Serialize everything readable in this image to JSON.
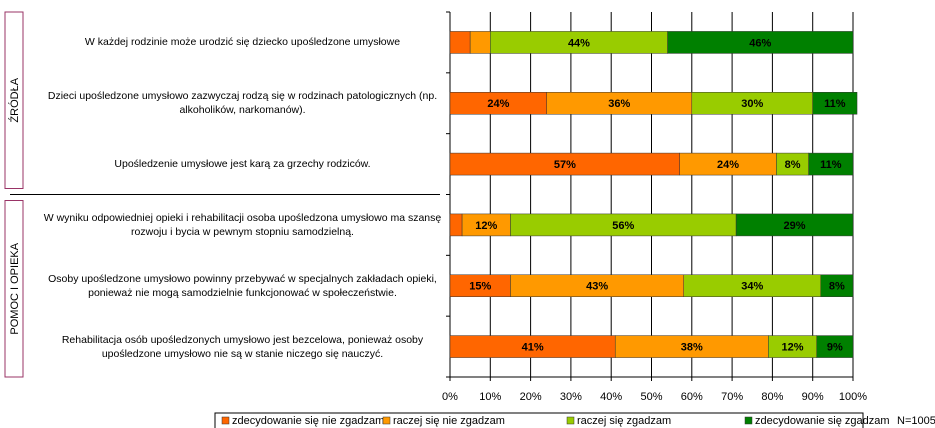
{
  "chart_data": {
    "type": "bar",
    "orientation": "horizontal",
    "stacked": true,
    "groups": [
      "ŹRÓDŁA",
      "POMOC I OPIEKA"
    ],
    "categories": [
      "W każdej rodzinie może urodzić się dziecko upośledzone umysłowe",
      "Dzieci upośledzone umysłowo zazwyczaj rodzą się w rodzinach patologicznych (np. alkoholików, narkomanów).",
      "Upośledzenie umysłowe jest karą za grzechy rodziców.",
      "W wyniku odpowiedniej opieki i rehabilitacji osoba upośledzona umysłowo ma szansę rozwoju i bycia w pewnym stopniu samodzielną.",
      "Osoby upośledzone umysłowo powinny przebywać w specjalnych zakładach opieki, ponieważ nie mogą samodzielnie funkcjonować w społeczeństwie.",
      "Rehabilitacja osób upośledzonych umysłowo jest bezcelowa, ponieważ osoby upośledzone umysłowo nie są w stanie niczego się nauczyć."
    ],
    "series": [
      {
        "name": "zdecydowanie się nie zgadzam",
        "color": "#ff6600",
        "values": [
          5,
          24,
          57,
          3,
          15,
          41
        ],
        "value_labels": [
          null,
          "24%",
          "57%",
          null,
          "15%",
          "41%"
        ]
      },
      {
        "name": "raczej się nie zgadzam",
        "color": "#ff9900",
        "values": [
          5,
          36,
          24,
          12,
          43,
          38
        ],
        "value_labels": [
          null,
          "36%",
          "24%",
          "12%",
          "43%",
          "38%"
        ]
      },
      {
        "name": "raczej się zgadzam",
        "color": "#99cc00",
        "values": [
          44,
          30,
          8,
          56,
          34,
          12
        ],
        "value_labels": [
          "44%",
          "30%",
          "8%",
          "56%",
          "34%",
          "12%"
        ]
      },
      {
        "name": "zdecydowanie się zgadzam",
        "color": "#008000",
        "values": [
          46,
          11,
          11,
          29,
          8,
          9
        ],
        "value_labels": [
          "46%",
          "11%",
          "11%",
          "29%",
          "8%",
          "9%"
        ]
      }
    ],
    "xlim": [
      0,
      100
    ],
    "xticks": [
      {
        "value": 0,
        "label": "0%"
      },
      {
        "value": 10,
        "label": "10%"
      },
      {
        "value": 20,
        "label": "20%"
      },
      {
        "value": 30,
        "label": "30%"
      },
      {
        "value": 40,
        "label": "40%"
      },
      {
        "value": 50,
        "label": "50%"
      },
      {
        "value": 60,
        "label": "60%"
      },
      {
        "value": 70,
        "label": "70%"
      },
      {
        "value": 80,
        "label": "80%"
      },
      {
        "value": 90,
        "label": "90%"
      },
      {
        "value": 100,
        "label": "100%"
      }
    ],
    "grid": true,
    "note": "N=1005"
  }
}
